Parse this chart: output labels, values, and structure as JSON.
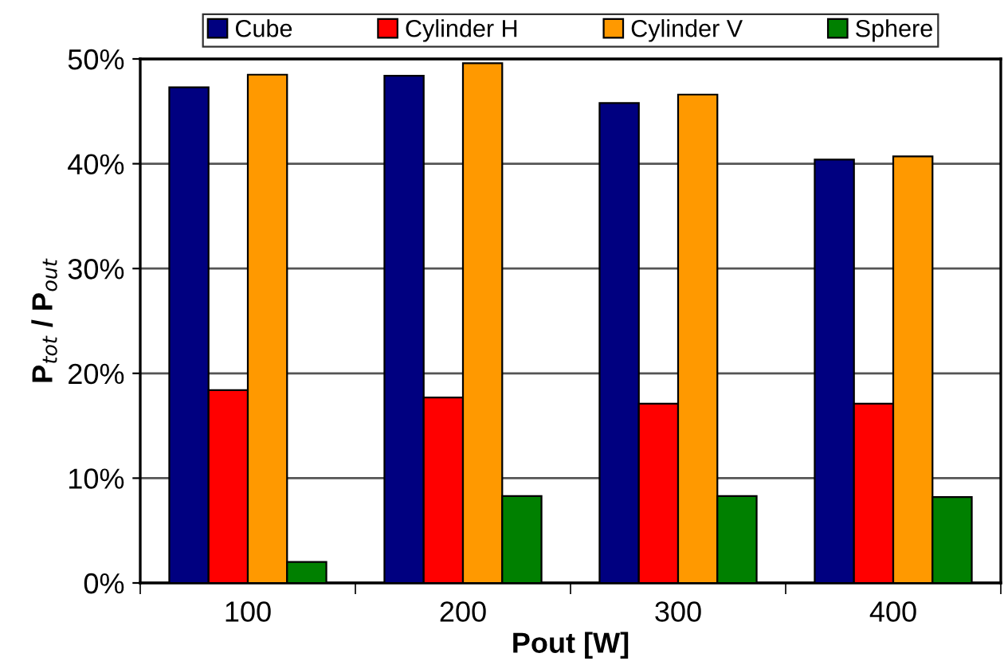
{
  "chart_data": {
    "type": "bar",
    "xlabel": "Pout [W]",
    "ylabel": "P$_{tot}$ / P$_{out}$",
    "categories": [
      "100",
      "200",
      "300",
      "400"
    ],
    "series": [
      {
        "name": "Cube",
        "color": "#000080",
        "values": [
          47.3,
          48.4,
          45.8,
          40.4
        ]
      },
      {
        "name": "Cylinder H",
        "color": "#ff0000",
        "values": [
          18.4,
          17.7,
          17.1,
          17.1
        ]
      },
      {
        "name": "Cylinder V",
        "color": "#ff9900",
        "values": [
          48.5,
          49.6,
          46.6,
          40.7
        ]
      },
      {
        "name": "Sphere",
        "color": "#008000",
        "values": [
          2.0,
          8.3,
          8.3,
          8.2
        ]
      }
    ],
    "ylim": [
      0,
      50
    ],
    "yticks": [
      {
        "value": 0,
        "label": "0%"
      },
      {
        "value": 10,
        "label": "10%"
      },
      {
        "value": 20,
        "label": "20%"
      },
      {
        "value": 30,
        "label": "30%"
      },
      {
        "value": 40,
        "label": "40%"
      },
      {
        "value": 50,
        "label": "50%"
      }
    ],
    "grid": "y",
    "legend": "top"
  }
}
